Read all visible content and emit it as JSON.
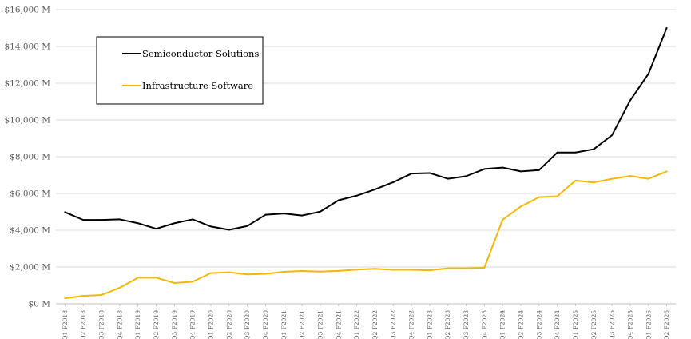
{
  "chart_data": {
    "type": "line",
    "title": "",
    "xlabel": "",
    "ylabel": "",
    "ylim": [
      0,
      16000
    ],
    "y_ticks": [
      0,
      2000,
      4000,
      6000,
      8000,
      10000,
      12000,
      14000,
      16000
    ],
    "y_tick_labels": [
      "$0 M",
      "$2,000 M",
      "$4,000 M",
      "$6,000 M",
      "$8,000 M",
      "$10,000 M",
      "$12,000 M",
      "$14,000 M",
      "$16,000 M"
    ],
    "grid": "horizontal",
    "legend_position": "top-left",
    "categories": [
      "Q1 F2018",
      "Q2 F2018",
      "Q3 F2018",
      "Q4 F2018",
      "Q1 F2019",
      "Q2 F2019",
      "Q3 F2019",
      "Q4 F2019",
      "Q1 F2020",
      "Q2 F2020",
      "Q3 F2020",
      "Q4 F2020",
      "Q1 F2021",
      "Q2 F2021",
      "Q3 F2021",
      "Q4 F2021",
      "Q1 F2022",
      "Q2 F2022",
      "Q3 F2022",
      "Q4 F2022",
      "Q1 F2023",
      "Q2 F2023",
      "Q3 F2023",
      "Q4 F2023",
      "Q1 F2024",
      "Q2 F2024",
      "Q3 F2024",
      "Q4 F2024",
      "Q1 F2025",
      "Q2 F2025",
      "Q3 F2025",
      "Q4 F2025",
      "Q1 F2026",
      "Q2 F2026"
    ],
    "series": [
      {
        "name": "Semiconductor Solutions",
        "color": "#000000",
        "values": [
          4980,
          4560,
          4560,
          4590,
          4380,
          4080,
          4380,
          4590,
          4200,
          4020,
          4230,
          4840,
          4910,
          4800,
          5010,
          5630,
          5880,
          6220,
          6610,
          7080,
          7110,
          6800,
          6940,
          7330,
          7410,
          7200,
          7270,
          8230,
          8230,
          8410,
          9170,
          11070,
          12510,
          15000
        ]
      },
      {
        "name": "Infrastructure Software",
        "color": "#f2b707",
        "values": [
          300,
          430,
          480,
          870,
          1420,
          1420,
          1130,
          1200,
          1670,
          1710,
          1600,
          1630,
          1740,
          1780,
          1750,
          1790,
          1860,
          1900,
          1850,
          1850,
          1820,
          1930,
          1930,
          1960,
          4570,
          5290,
          5800,
          5850,
          6700,
          6600,
          6800,
          6950,
          6800,
          7200
        ]
      }
    ]
  }
}
